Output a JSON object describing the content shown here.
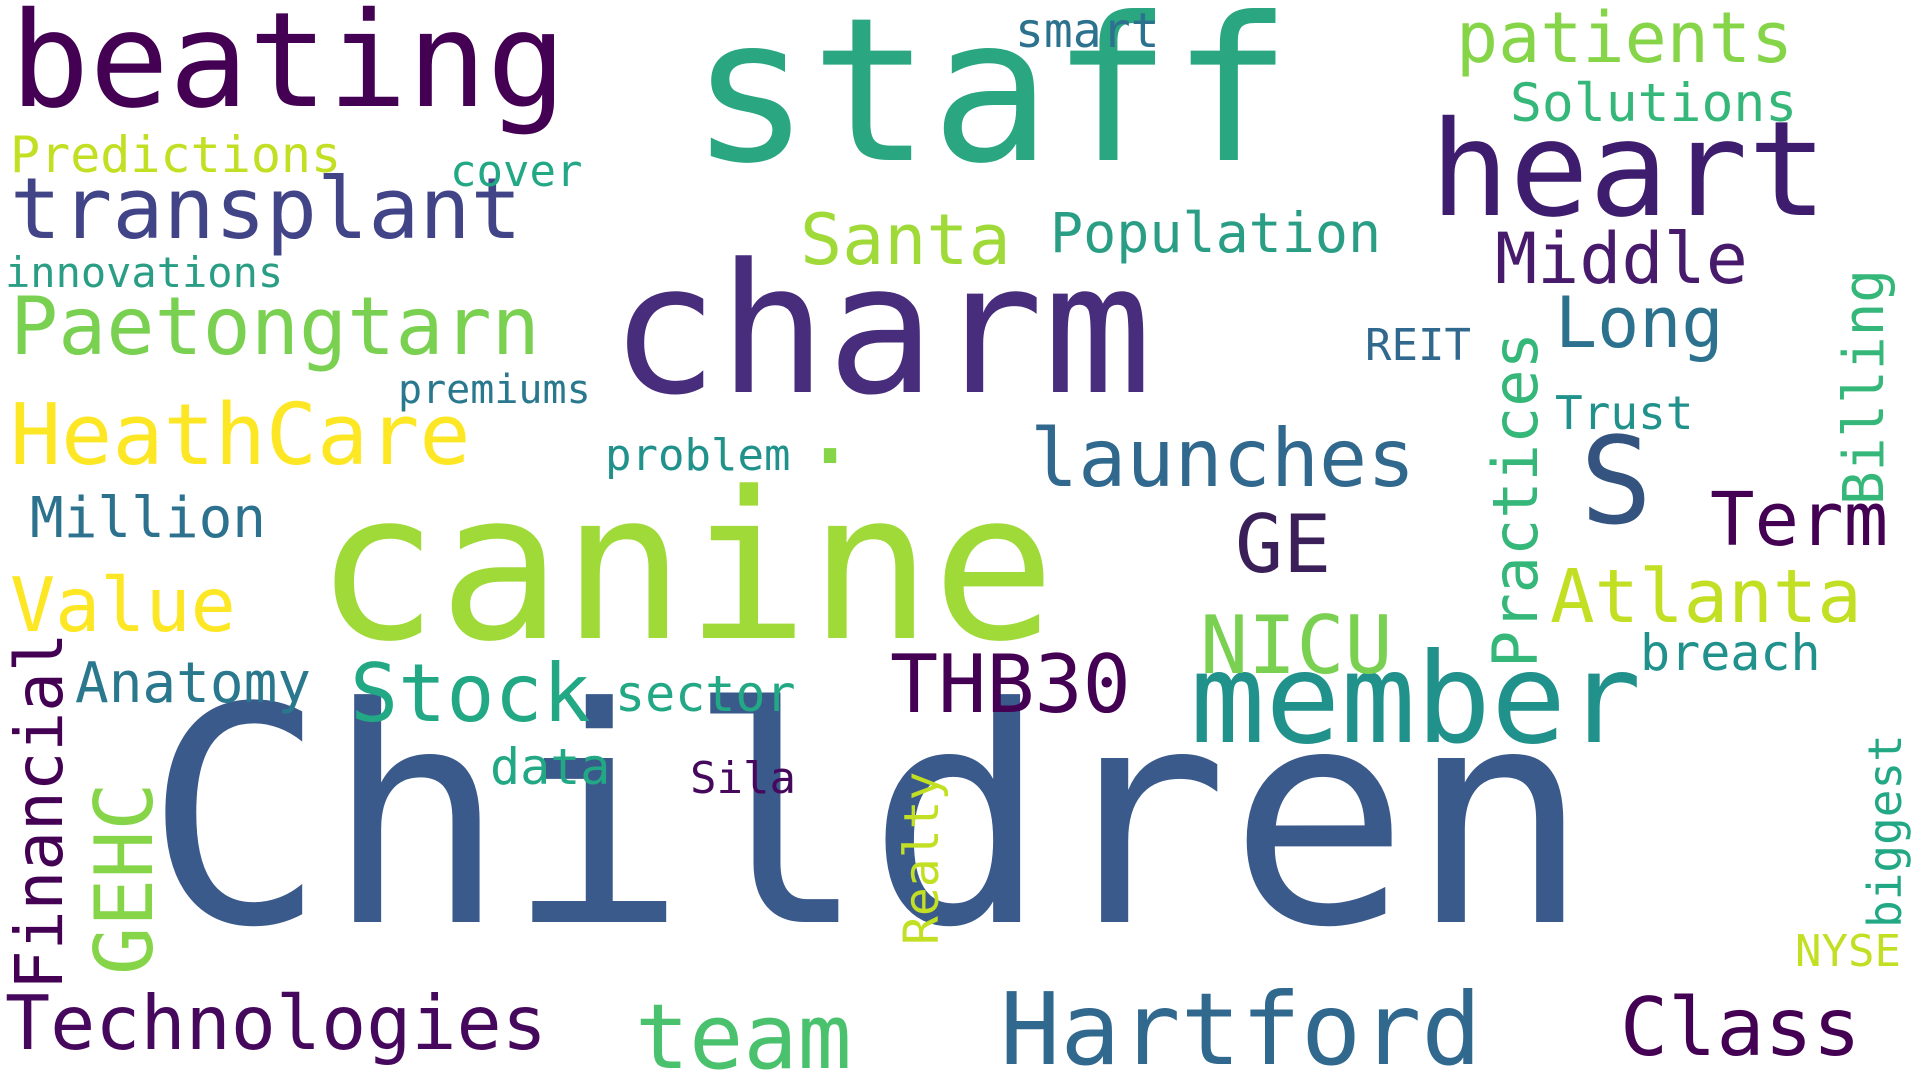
{
  "word_cloud": {
    "words": [
      {
        "text": "Children",
        "color": "#3b5a8c",
        "vertical": false
      },
      {
        "text": "canine",
        "color": "#a0da39",
        "vertical": false
      },
      {
        "text": "charm",
        "color": "#472d7b",
        "vertical": false
      },
      {
        "text": "staff",
        "color": "#2aa680",
        "vertical": false
      },
      {
        "text": "beating",
        "color": "#440154",
        "vertical": false
      },
      {
        "text": "member",
        "color": "#21918c",
        "vertical": false
      },
      {
        "text": "heart",
        "color": "#3e1d6f",
        "vertical": false
      },
      {
        "text": "S",
        "color": "#34547f",
        "vertical": false
      },
      {
        "text": "transplant",
        "color": "#414487",
        "vertical": false
      },
      {
        "text": "Paetongtarn",
        "color": "#7ad151",
        "vertical": false
      },
      {
        "text": "HeathCare",
        "color": "#fde725",
        "vertical": false
      },
      {
        "text": "Hartford",
        "color": "#31688e",
        "vertical": false
      },
      {
        "text": "Technologies",
        "color": "#46085c",
        "vertical": false
      },
      {
        "text": "team",
        "color": "#4ac16d",
        "vertical": false
      },
      {
        "text": "Class",
        "color": "#440154",
        "vertical": false
      },
      {
        "text": "launches",
        "color": "#31688e",
        "vertical": false
      },
      {
        "text": "Atlanta",
        "color": "#c2df23",
        "vertical": false
      },
      {
        "text": "Stock",
        "color": "#22a884",
        "vertical": false
      },
      {
        "text": "THB30",
        "color": "#440154",
        "vertical": false
      },
      {
        "text": "NICU",
        "color": "#7ad151",
        "vertical": false
      },
      {
        "text": "Value",
        "color": "#fde725",
        "vertical": false
      },
      {
        "text": "Term",
        "color": "#440154",
        "vertical": false
      },
      {
        "text": "GE",
        "color": "#3b1f58",
        "vertical": false
      },
      {
        "text": "Santa",
        "color": "#a0da39",
        "vertical": false
      },
      {
        "text": "patients",
        "color": "#86d549",
        "vertical": false
      },
      {
        "text": "Middle",
        "color": "#481a6c",
        "vertical": false
      },
      {
        "text": "Long",
        "color": "#2c728e",
        "vertical": false
      },
      {
        "text": "Million",
        "color": "#2c728e",
        "vertical": false
      },
      {
        "text": "Anatomy",
        "color": "#2a788e",
        "vertical": false
      },
      {
        "text": "Population",
        "color": "#2a9d85",
        "vertical": false
      },
      {
        "text": "breach",
        "color": "#21918c",
        "vertical": false
      },
      {
        "text": "Solutions",
        "color": "#35b779",
        "vertical": false
      },
      {
        "text": "sector",
        "color": "#22a884",
        "vertical": false
      },
      {
        "text": "Predictions",
        "color": "#c2df23",
        "vertical": false
      },
      {
        "text": "smart",
        "color": "#2c728e",
        "vertical": false
      },
      {
        "text": "innovations",
        "color": "#2a9d85",
        "vertical": false
      },
      {
        "text": "data",
        "color": "#22a884",
        "vertical": false
      },
      {
        "text": "Trust",
        "color": "#21918c",
        "vertical": false
      },
      {
        "text": "problem",
        "color": "#21918c",
        "vertical": false
      },
      {
        "text": "cover",
        "color": "#22a884",
        "vertical": false
      },
      {
        "text": "Sila",
        "color": "#46085c",
        "vertical": false
      },
      {
        "text": "REIT",
        "color": "#31688e",
        "vertical": false
      },
      {
        "text": "premiums",
        "color": "#2a788e",
        "vertical": false
      },
      {
        "text": "NYSE",
        "color": "#c2df23",
        "vertical": false
      },
      {
        "text": ".",
        "color": "#86d549",
        "vertical": false
      },
      {
        "text": "Financial",
        "color": "#440154",
        "vertical": true
      },
      {
        "text": "GEHC",
        "color": "#86d549",
        "vertical": true
      },
      {
        "text": "Practices",
        "color": "#35b779",
        "vertical": true
      },
      {
        "text": "Billing",
        "color": "#35b779",
        "vertical": true
      },
      {
        "text": "Realty",
        "color": "#c2df23",
        "vertical": true
      },
      {
        "text": "biggest",
        "color": "#22a884",
        "vertical": true
      }
    ]
  }
}
